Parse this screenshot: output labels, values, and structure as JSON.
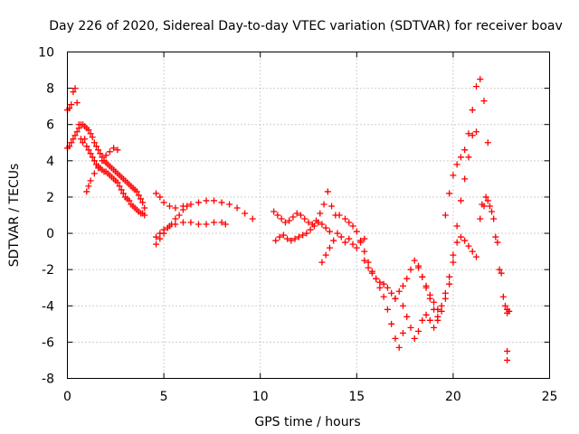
{
  "chart_data": {
    "type": "scatter",
    "title": "Day 226 of 2020, Sidereal Day-to-day VTEC variation (SDTVAR) for receiver boav",
    "xlabel": "GPS time / hours",
    "ylabel": "SDTVAR / TECUs",
    "xlim": [
      0,
      25
    ],
    "ylim": [
      -8,
      10
    ],
    "xticks": [
      0,
      5,
      10,
      15,
      20,
      25
    ],
    "yticks": [
      -8,
      -6,
      -4,
      -2,
      0,
      2,
      4,
      6,
      8,
      10
    ],
    "grid": true,
    "marker": "+",
    "color": "#ff0000",
    "series": [
      {
        "name": "segment-1",
        "x": [
          0.0,
          0.1,
          0.2,
          0.3,
          0.4,
          0.5,
          0.6,
          0.7,
          0.8,
          0.9,
          1.0,
          1.1,
          1.2,
          1.3,
          1.4,
          1.5,
          1.6,
          1.7,
          1.8,
          1.9,
          2.0,
          2.1,
          2.2,
          2.3,
          2.4,
          2.5,
          2.6,
          2.7,
          2.8,
          2.9,
          3.0,
          3.1,
          3.2,
          3.3,
          3.4,
          3.5,
          3.6,
          3.7,
          3.8,
          3.9,
          4.0
        ],
        "y": [
          6.8,
          6.9,
          7.1,
          7.8,
          8.0,
          7.2,
          6.0,
          5.2,
          5.0,
          5.2,
          4.8,
          4.6,
          4.4,
          4.2,
          4.0,
          3.8,
          3.7,
          3.6,
          3.5,
          3.4,
          3.4,
          3.3,
          3.2,
          3.1,
          3.0,
          2.9,
          2.8,
          2.6,
          2.4,
          2.2,
          2.0,
          1.9,
          1.8,
          1.6,
          1.5,
          1.4,
          1.3,
          1.2,
          1.1,
          1.1,
          1.0
        ]
      },
      {
        "name": "segment-2",
        "x": [
          0.0,
          0.1,
          0.2,
          0.3,
          0.4,
          0.5,
          0.6,
          0.7,
          0.8,
          0.9,
          1.0,
          1.1,
          1.2,
          1.3,
          1.4,
          1.5,
          1.6,
          1.7,
          1.8,
          1.9,
          2.0,
          2.1,
          2.2,
          2.3,
          2.4,
          2.5,
          2.6,
          2.7,
          2.8,
          2.9,
          3.0,
          3.1,
          3.2,
          3.3,
          3.4,
          3.5,
          3.6,
          3.7,
          3.8,
          3.9,
          4.0
        ],
        "y": [
          4.7,
          4.8,
          5.0,
          5.2,
          5.4,
          5.6,
          5.8,
          6.0,
          6.0,
          5.9,
          5.8,
          5.7,
          5.5,
          5.3,
          5.0,
          4.8,
          4.6,
          4.4,
          4.2,
          4.0,
          3.9,
          3.8,
          3.7,
          3.6,
          3.5,
          3.4,
          3.3,
          3.2,
          3.1,
          3.0,
          2.9,
          2.8,
          2.7,
          2.6,
          2.5,
          2.4,
          2.3,
          2.1,
          1.9,
          1.7,
          1.4
        ]
      },
      {
        "name": "segment-3",
        "x": [
          1.0,
          1.1,
          1.2,
          1.4,
          1.6,
          1.8,
          2.0,
          2.2,
          2.4,
          2.6
        ],
        "y": [
          2.3,
          2.6,
          2.9,
          3.3,
          3.6,
          4.0,
          4.3,
          4.5,
          4.7,
          4.6
        ]
      },
      {
        "name": "segment-4",
        "x": [
          4.6,
          4.8,
          5.0,
          5.3,
          5.6,
          6.0,
          6.4,
          6.8,
          7.2,
          7.6,
          8.0,
          8.4,
          8.8,
          9.2,
          9.6
        ],
        "y": [
          2.2,
          2.0,
          1.7,
          1.5,
          1.4,
          1.5,
          1.6,
          1.7,
          1.8,
          1.8,
          1.7,
          1.6,
          1.4,
          1.1,
          0.8
        ]
      },
      {
        "name": "segment-5",
        "x": [
          4.6,
          4.8,
          5.0,
          5.3,
          5.6,
          6.0,
          6.4,
          6.8,
          7.2,
          7.6,
          8.0,
          8.2
        ],
        "y": [
          -0.2,
          0.0,
          0.2,
          0.4,
          0.5,
          0.6,
          0.6,
          0.5,
          0.5,
          0.6,
          0.6,
          0.5
        ]
      },
      {
        "name": "segment-6",
        "x": [
          4.6,
          4.8,
          5.0,
          5.2,
          5.4,
          5.6,
          5.8,
          6.0,
          6.2
        ],
        "y": [
          -0.6,
          -0.3,
          0.0,
          0.3,
          0.5,
          0.8,
          1.0,
          1.3,
          1.5
        ]
      },
      {
        "name": "segment-7",
        "x": [
          10.7,
          10.9,
          11.1,
          11.3,
          11.5,
          11.7,
          11.9,
          12.1,
          12.3,
          12.5,
          12.7,
          12.9,
          13.1,
          13.3,
          13.5,
          13.7,
          13.9,
          14.1
        ],
        "y": [
          1.2,
          1.0,
          0.8,
          0.6,
          0.7,
          0.9,
          1.1,
          1.0,
          0.8,
          0.6,
          0.5,
          0.7,
          1.1,
          1.6,
          2.3,
          1.5,
          1.0,
          1.0
        ]
      },
      {
        "name": "segment-8",
        "x": [
          10.8,
          11.0,
          11.2,
          11.4,
          11.6,
          11.8,
          12.0,
          12.2,
          12.4,
          12.6,
          12.8,
          13.0,
          13.2,
          13.4,
          13.6
        ],
        "y": [
          -0.4,
          -0.2,
          -0.1,
          -0.3,
          -0.4,
          -0.3,
          -0.2,
          -0.1,
          0.0,
          0.2,
          0.4,
          0.6,
          0.5,
          0.3,
          0.1
        ]
      },
      {
        "name": "segment-9",
        "x": [
          13.2,
          13.4,
          13.6,
          13.8,
          14.0,
          14.2,
          14.4,
          14.6,
          14.8,
          15.0,
          15.2,
          15.4
        ],
        "y": [
          -1.6,
          -1.2,
          -0.8,
          -0.4,
          0.0,
          -0.2,
          -0.5,
          -0.3,
          -0.6,
          -0.8,
          -0.5,
          -0.3
        ]
      },
      {
        "name": "segment-10",
        "x": [
          14.4,
          14.6,
          14.8,
          15.0,
          15.2,
          15.4,
          15.6,
          15.8,
          16.0,
          16.2,
          16.4,
          16.6,
          16.8,
          17.0,
          17.2,
          17.4
        ],
        "y": [
          0.8,
          0.6,
          0.4,
          0.1,
          -0.4,
          -1.0,
          -1.6,
          -2.1,
          -2.5,
          -3.0,
          -3.5,
          -4.2,
          -5.0,
          -5.8,
          -6.3,
          -5.5
        ]
      },
      {
        "name": "segment-11",
        "x": [
          15.4,
          15.6,
          15.8,
          16.0,
          16.2,
          16.4,
          16.6,
          16.8,
          17.0
        ],
        "y": [
          -1.5,
          -1.9,
          -2.2,
          -2.5,
          -2.7,
          -2.8,
          -3.0,
          -3.3,
          -3.6
        ]
      },
      {
        "name": "segment-12",
        "x": [
          17.0,
          17.2,
          17.4,
          17.6,
          17.8,
          18.0,
          18.2,
          18.4,
          18.6,
          18.8,
          19.0,
          19.2
        ],
        "y": [
          -3.6,
          -3.2,
          -2.9,
          -2.5,
          -2.0,
          -1.5,
          -1.9,
          -2.4,
          -2.9,
          -3.4,
          -3.8,
          -4.2
        ]
      },
      {
        "name": "segment-13",
        "x": [
          17.4,
          17.6,
          17.8,
          18.0,
          18.2,
          18.4,
          18.6,
          18.8,
          19.0,
          19.2,
          19.4,
          19.6,
          19.8,
          20.0,
          20.2
        ],
        "y": [
          -4.0,
          -4.6,
          -5.2,
          -5.8,
          -5.4,
          -4.8,
          -4.5,
          -4.8,
          -5.2,
          -4.8,
          -4.3,
          -3.6,
          -2.8,
          -1.6,
          -0.5
        ]
      },
      {
        "name": "segment-14",
        "x": [
          18.2,
          18.4,
          18.6,
          18.8,
          19.0,
          19.2,
          19.4,
          19.6,
          19.8,
          20.0,
          20.2,
          20.4,
          20.6,
          20.8,
          21.0,
          21.2
        ],
        "y": [
          -1.8,
          -2.4,
          -3.0,
          -3.6,
          -4.2,
          -4.6,
          -4.0,
          -3.3,
          -2.4,
          -1.2,
          0.4,
          1.8,
          3.0,
          4.2,
          5.4,
          5.6
        ]
      },
      {
        "name": "segment-15",
        "x": [
          19.6,
          19.8,
          20.0,
          20.2,
          20.4,
          20.6,
          20.8,
          21.0,
          21.2,
          21.4,
          21.6,
          21.8
        ],
        "y": [
          1.0,
          2.2,
          3.2,
          3.8,
          4.2,
          4.6,
          5.5,
          6.8,
          8.1,
          8.5,
          7.3,
          5.0
        ]
      },
      {
        "name": "segment-16",
        "x": [
          20.4,
          20.6,
          20.8,
          21.0,
          21.2,
          21.4,
          21.6,
          21.8,
          22.0,
          22.2,
          22.4,
          22.6
        ],
        "y": [
          -0.2,
          -0.4,
          -0.7,
          -1.0,
          -1.3,
          0.8,
          1.5,
          1.8,
          1.2,
          -0.2,
          -2.0,
          -3.5
        ]
      },
      {
        "name": "segment-17",
        "x": [
          21.5,
          21.7,
          21.9,
          22.1,
          22.3,
          22.5,
          22.7
        ],
        "y": [
          1.6,
          2.0,
          1.5,
          0.8,
          -0.5,
          -2.2,
          -4.0
        ]
      },
      {
        "name": "segment-18",
        "x": [
          22.8,
          22.8,
          22.8,
          22.8,
          22.9
        ],
        "y": [
          -4.2,
          -4.4,
          -6.5,
          -7.0,
          -4.3
        ]
      }
    ]
  }
}
